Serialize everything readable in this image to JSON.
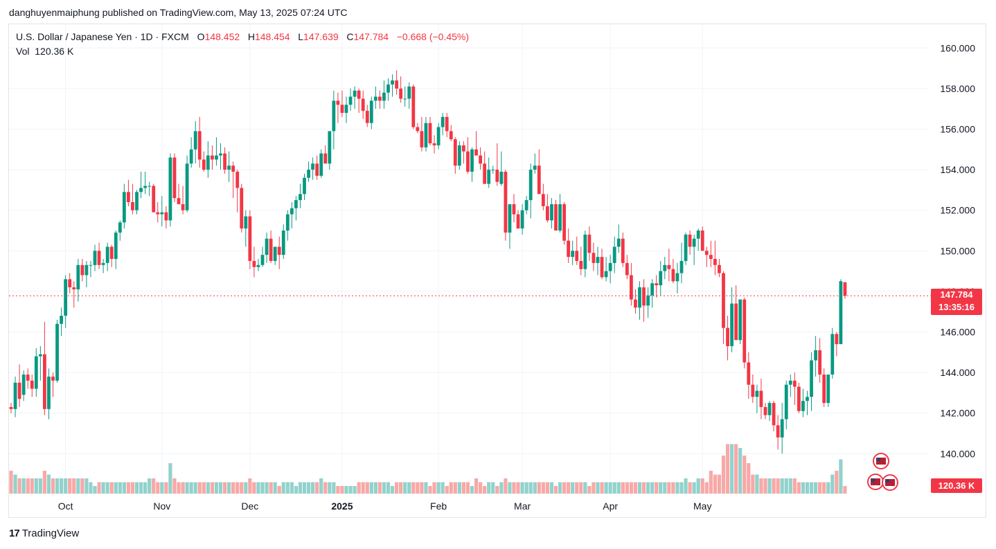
{
  "caption": "danghuyenmaiphung published on TradingView.com, May 13, 2025 07:24 UTC",
  "legend": {
    "symbol": "U.S. Dollar / Japanese Yen · 1D · FXCM",
    "o_label": "O",
    "o": "148.452",
    "h_label": "H",
    "h": "148.454",
    "l_label": "L",
    "l": "147.639",
    "c_label": "C",
    "c": "147.784",
    "change": "−0.668 (−0.45%)",
    "vol_label": "Vol",
    "vol": "120.36 K"
  },
  "badges": {
    "price": "147.784",
    "countdown": "13:35:16",
    "volume": "120.36 K"
  },
  "brand": {
    "logo": "17",
    "name": "TradingView"
  },
  "colors": {
    "up": "#089981",
    "down": "#f23645",
    "vol_up": "#92d2cc",
    "vol_down": "#f7a9a7",
    "grid": "#f0f3fa"
  },
  "icons": [
    "flag-us-icon",
    "flag-jp-icon"
  ],
  "chart_data": {
    "type": "candlestick",
    "ylim": [
      139.0,
      161.0
    ],
    "y_ticks": [
      "160.000",
      "158.000",
      "156.000",
      "154.000",
      "152.000",
      "150.000",
      "148.000",
      "146.000",
      "144.000",
      "142.000",
      "140.000"
    ],
    "x_ticks": [
      {
        "label": "Oct",
        "bold": false,
        "index": 13
      },
      {
        "label": "Nov",
        "bold": false,
        "index": 36
      },
      {
        "label": "Dec",
        "bold": false,
        "index": 57
      },
      {
        "label": "2025",
        "bold": true,
        "index": 79
      },
      {
        "label": "Feb",
        "bold": false,
        "index": 102
      },
      {
        "label": "Mar",
        "bold": false,
        "index": 122
      },
      {
        "label": "Apr",
        "bold": false,
        "index": 143
      },
      {
        "label": "May",
        "bold": false,
        "index": 165
      }
    ],
    "current_price": 147.784,
    "ohlcv": [
      [
        142.3,
        142.5,
        142.0,
        142.2,
        0.6
      ],
      [
        142.2,
        143.8,
        141.8,
        143.5,
        0.5
      ],
      [
        143.5,
        144.4,
        142.3,
        142.7,
        0.4
      ],
      [
        142.9,
        144.1,
        142.6,
        143.9,
        0.4
      ],
      [
        143.9,
        144.2,
        143.2,
        143.6,
        0.4
      ],
      [
        143.6,
        143.9,
        142.8,
        143.2,
        0.4
      ],
      [
        143.2,
        145.2,
        142.8,
        144.8,
        0.4
      ],
      [
        144.8,
        145.3,
        143.6,
        144.9,
        0.4
      ],
      [
        144.9,
        146.5,
        141.9,
        142.2,
        0.6
      ],
      [
        142.2,
        144.2,
        141.7,
        143.8,
        0.5
      ],
      [
        143.8,
        144.0,
        142.8,
        143.6,
        0.4
      ],
      [
        143.6,
        146.6,
        143.5,
        146.4,
        0.4
      ],
      [
        146.4,
        147.2,
        145.8,
        146.8,
        0.4
      ],
      [
        146.8,
        148.8,
        146.2,
        148.6,
        0.4
      ],
      [
        148.6,
        148.9,
        147.9,
        148.2,
        0.4
      ],
      [
        148.2,
        148.5,
        147.2,
        148.1,
        0.4
      ],
      [
        148.1,
        149.6,
        147.5,
        149.3,
        0.4
      ],
      [
        149.3,
        149.6,
        148.5,
        148.8,
        0.4
      ],
      [
        148.8,
        149.5,
        148.2,
        149.3,
        0.4
      ],
      [
        149.3,
        149.5,
        148.7,
        149.3,
        0.3
      ],
      [
        149.3,
        150.3,
        149.0,
        150.0,
        0.2
      ],
      [
        150.0,
        150.4,
        149.1,
        149.3,
        0.3
      ],
      [
        149.3,
        149.6,
        148.9,
        149.4,
        0.3
      ],
      [
        149.4,
        150.4,
        149.0,
        150.2,
        0.3
      ],
      [
        150.2,
        150.3,
        149.2,
        149.6,
        0.3
      ],
      [
        149.6,
        151.0,
        149.1,
        150.9,
        0.3
      ],
      [
        150.9,
        151.5,
        150.5,
        151.4,
        0.3
      ],
      [
        151.4,
        153.3,
        151.1,
        152.9,
        0.3
      ],
      [
        152.9,
        153.5,
        152.2,
        152.4,
        0.3
      ],
      [
        152.4,
        153.3,
        151.8,
        152.0,
        0.3
      ],
      [
        152.0,
        153.0,
        151.8,
        152.9,
        0.3
      ],
      [
        152.9,
        153.9,
        152.6,
        153.1,
        0.3
      ],
      [
        153.1,
        153.9,
        152.8,
        153.2,
        0.3
      ],
      [
        153.2,
        153.4,
        152.7,
        153.2,
        0.4
      ],
      [
        153.2,
        153.3,
        151.9,
        151.9,
        0.4
      ],
      [
        151.9,
        152.4,
        151.4,
        151.8,
        0.3
      ],
      [
        151.8,
        152.7,
        151.2,
        151.9,
        0.3
      ],
      [
        151.9,
        152.2,
        151.1,
        151.5,
        0.3
      ],
      [
        151.5,
        154.8,
        151.2,
        154.6,
        0.8
      ],
      [
        154.6,
        154.8,
        152.4,
        152.6,
        0.4
      ],
      [
        152.6,
        153.3,
        152.3,
        152.3,
        0.3
      ],
      [
        152.3,
        153.2,
        151.8,
        152.0,
        0.3
      ],
      [
        152.0,
        154.7,
        151.9,
        154.3,
        0.3
      ],
      [
        154.3,
        155.6,
        154.1,
        155.0,
        0.3
      ],
      [
        155.0,
        156.4,
        154.3,
        155.9,
        0.3
      ],
      [
        155.9,
        156.6,
        154.1,
        154.5,
        0.3
      ],
      [
        154.5,
        154.9,
        153.9,
        154.0,
        0.3
      ],
      [
        154.0,
        155.4,
        153.6,
        154.7,
        0.3
      ],
      [
        154.7,
        155.2,
        154.0,
        154.5,
        0.3
      ],
      [
        154.5,
        155.6,
        154.2,
        154.7,
        0.3
      ],
      [
        154.7,
        155.3,
        154.0,
        154.8,
        0.3
      ],
      [
        154.8,
        155.1,
        153.8,
        154.0,
        0.3
      ],
      [
        154.0,
        154.9,
        153.4,
        154.2,
        0.3
      ],
      [
        154.2,
        154.4,
        152.6,
        153.9,
        0.3
      ],
      [
        153.9,
        154.0,
        151.9,
        153.1,
        0.3
      ],
      [
        153.1,
        153.3,
        150.9,
        151.1,
        0.3
      ],
      [
        151.1,
        152.0,
        150.2,
        151.7,
        0.3
      ],
      [
        151.7,
        152.0,
        149.1,
        149.5,
        0.4
      ],
      [
        149.5,
        150.2,
        148.7,
        149.2,
        0.3
      ],
      [
        149.2,
        149.6,
        149.0,
        149.3,
        0.3
      ],
      [
        149.3,
        150.2,
        149.2,
        149.8,
        0.3
      ],
      [
        149.8,
        150.9,
        149.4,
        150.6,
        0.3
      ],
      [
        150.6,
        151.0,
        149.4,
        149.5,
        0.3
      ],
      [
        149.5,
        150.2,
        149.3,
        150.2,
        0.3
      ],
      [
        150.2,
        150.7,
        149.1,
        149.8,
        0.2
      ],
      [
        149.8,
        151.3,
        149.6,
        151.0,
        0.3
      ],
      [
        151.0,
        152.0,
        150.5,
        151.8,
        0.3
      ],
      [
        151.8,
        152.4,
        151.1,
        152.1,
        0.3
      ],
      [
        152.1,
        152.7,
        151.5,
        152.5,
        0.2
      ],
      [
        152.5,
        153.3,
        152.1,
        152.8,
        0.3
      ],
      [
        152.8,
        153.8,
        152.5,
        153.6,
        0.3
      ],
      [
        153.6,
        154.4,
        153.4,
        154.0,
        0.3
      ],
      [
        154.0,
        154.6,
        153.5,
        154.3,
        0.3
      ],
      [
        154.3,
        154.7,
        153.5,
        153.7,
        0.3
      ],
      [
        153.7,
        155.0,
        153.6,
        154.8,
        0.4
      ],
      [
        154.8,
        155.2,
        154.3,
        154.3,
        0.3
      ],
      [
        154.3,
        155.9,
        154.0,
        155.9,
        0.3
      ],
      [
        155.9,
        157.9,
        155.0,
        157.4,
        0.3
      ],
      [
        157.4,
        157.8,
        156.3,
        157.2,
        0.2
      ],
      [
        157.2,
        157.9,
        156.6,
        156.8,
        0.2
      ],
      [
        156.8,
        157.6,
        156.3,
        157.2,
        0.2
      ],
      [
        157.2,
        158.0,
        156.9,
        157.6,
        0.2
      ],
      [
        157.6,
        158.1,
        157.0,
        157.9,
        0.2
      ],
      [
        157.9,
        158.0,
        156.8,
        157.5,
        0.3
      ],
      [
        157.5,
        157.9,
        156.5,
        156.9,
        0.3
      ],
      [
        156.9,
        157.2,
        156.1,
        156.3,
        0.3
      ],
      [
        156.3,
        157.6,
        156.0,
        157.4,
        0.3
      ],
      [
        157.4,
        158.1,
        157.0,
        157.6,
        0.3
      ],
      [
        157.6,
        157.9,
        157.0,
        157.4,
        0.3
      ],
      [
        157.4,
        158.4,
        157.0,
        157.8,
        0.3
      ],
      [
        157.8,
        158.5,
        157.4,
        158.2,
        0.3
      ],
      [
        158.2,
        158.7,
        157.6,
        158.4,
        0.2
      ],
      [
        158.4,
        158.9,
        157.7,
        158.0,
        0.3
      ],
      [
        158.0,
        158.6,
        157.3,
        157.5,
        0.3
      ],
      [
        157.5,
        158.1,
        157.1,
        157.5,
        0.3
      ],
      [
        157.5,
        158.3,
        157.0,
        158.1,
        0.3
      ],
      [
        158.1,
        158.2,
        156.0,
        156.1,
        0.3
      ],
      [
        156.1,
        156.3,
        155.8,
        155.9,
        0.3
      ],
      [
        155.9,
        156.6,
        154.9,
        155.1,
        0.3
      ],
      [
        155.1,
        156.6,
        154.9,
        156.3,
        0.3
      ],
      [
        156.3,
        156.6,
        155.2,
        155.3,
        0.2
      ],
      [
        155.3,
        155.7,
        154.8,
        155.2,
        0.3
      ],
      [
        155.2,
        156.3,
        155.0,
        156.1,
        0.3
      ],
      [
        156.1,
        156.8,
        155.7,
        156.6,
        0.3
      ],
      [
        156.6,
        156.8,
        155.6,
        155.9,
        0.2
      ],
      [
        155.9,
        156.2,
        155.4,
        155.5,
        0.3
      ],
      [
        155.5,
        155.6,
        153.8,
        154.2,
        0.3
      ],
      [
        154.2,
        155.4,
        154.0,
        155.2,
        0.3
      ],
      [
        155.2,
        155.4,
        154.3,
        154.9,
        0.3
      ],
      [
        154.9,
        155.6,
        153.8,
        153.9,
        0.3
      ],
      [
        153.9,
        155.1,
        153.4,
        155.0,
        0.2
      ],
      [
        155.0,
        155.9,
        154.7,
        154.7,
        0.4
      ],
      [
        154.7,
        155.1,
        154.0,
        154.3,
        0.3
      ],
      [
        154.3,
        154.9,
        153.3,
        153.3,
        0.2
      ],
      [
        153.3,
        154.6,
        153.1,
        154.0,
        0.3
      ],
      [
        154.0,
        154.2,
        153.8,
        154.0,
        0.3
      ],
      [
        154.0,
        155.3,
        153.2,
        153.4,
        0.2
      ],
      [
        153.3,
        154.9,
        153.2,
        153.9,
        0.3
      ],
      [
        153.9,
        154.0,
        150.5,
        150.9,
        0.4
      ],
      [
        150.9,
        152.1,
        150.1,
        152.3,
        0.3
      ],
      [
        152.3,
        152.8,
        151.4,
        151.8,
        0.3
      ],
      [
        151.8,
        152.0,
        151.1,
        151.1,
        0.3
      ],
      [
        151.1,
        152.3,
        150.8,
        152.0,
        0.3
      ],
      [
        152.0,
        152.7,
        151.8,
        152.5,
        0.3
      ],
      [
        152.5,
        154.3,
        151.6,
        154.0,
        0.3
      ],
      [
        154.0,
        154.8,
        153.8,
        154.2,
        0.3
      ],
      [
        154.2,
        155.0,
        153.6,
        152.8,
        0.3
      ],
      [
        152.8,
        153.3,
        152.0,
        152.2,
        0.3
      ],
      [
        152.2,
        152.8,
        151.4,
        151.5,
        0.3
      ],
      [
        151.5,
        152.6,
        151.1,
        152.3,
        0.3
      ],
      [
        152.3,
        152.5,
        151.0,
        151.0,
        0.2
      ],
      [
        151.0,
        152.8,
        150.9,
        152.3,
        0.3
      ],
      [
        152.3,
        152.4,
        150.3,
        150.5,
        0.3
      ],
      [
        150.5,
        151.1,
        149.4,
        149.7,
        0.3
      ],
      [
        149.7,
        150.5,
        149.3,
        150.0,
        0.3
      ],
      [
        150.0,
        150.7,
        149.3,
        149.5,
        0.3
      ],
      [
        149.5,
        150.2,
        148.8,
        149.1,
        0.3
      ],
      [
        149.1,
        151.0,
        148.7,
        150.8,
        0.3
      ],
      [
        150.8,
        151.2,
        149.5,
        149.9,
        0.2
      ],
      [
        149.9,
        150.4,
        149.0,
        149.4,
        0.3
      ],
      [
        149.4,
        150.2,
        148.8,
        149.7,
        0.3
      ],
      [
        149.7,
        150.1,
        148.6,
        148.7,
        0.3
      ],
      [
        148.7,
        149.7,
        148.5,
        149.0,
        0.3
      ],
      [
        149.0,
        149.8,
        148.4,
        149.4,
        0.3
      ],
      [
        149.4,
        150.7,
        148.9,
        150.2,
        0.3
      ],
      [
        150.2,
        151.3,
        149.9,
        150.6,
        0.3
      ],
      [
        150.6,
        150.9,
        149.2,
        149.4,
        0.3
      ],
      [
        149.4,
        149.8,
        148.6,
        148.8,
        0.3
      ],
      [
        148.8,
        149.4,
        147.3,
        147.6,
        0.3
      ],
      [
        147.6,
        148.1,
        146.9,
        147.2,
        0.3
      ],
      [
        147.2,
        148.5,
        146.6,
        148.2,
        0.3
      ],
      [
        148.2,
        148.6,
        146.5,
        147.3,
        0.3
      ],
      [
        147.3,
        148.2,
        146.7,
        147.8,
        0.3
      ],
      [
        147.8,
        148.6,
        147.2,
        148.4,
        0.3
      ],
      [
        148.4,
        148.8,
        147.7,
        148.3,
        0.3
      ],
      [
        148.3,
        149.5,
        147.8,
        149.0,
        0.3
      ],
      [
        149.0,
        149.7,
        148.6,
        149.3,
        0.3
      ],
      [
        149.3,
        150.1,
        148.5,
        149.1,
        0.3
      ],
      [
        149.1,
        149.6,
        148.4,
        148.5,
        0.3
      ],
      [
        148.5,
        149.4,
        147.9,
        148.9,
        0.3
      ],
      [
        148.9,
        150.4,
        148.4,
        149.5,
        0.3
      ],
      [
        149.5,
        150.9,
        149.3,
        150.8,
        0.4
      ],
      [
        150.8,
        151.0,
        149.8,
        150.2,
        0.3
      ],
      [
        150.2,
        150.8,
        149.3,
        150.6,
        0.3
      ],
      [
        150.6,
        151.1,
        150.0,
        151.0,
        0.4
      ],
      [
        151.0,
        151.2,
        150.1,
        150.0,
        0.4
      ],
      [
        150.0,
        150.2,
        149.2,
        149.8,
        0.3
      ],
      [
        149.8,
        150.5,
        149.2,
        149.6,
        0.6
      ],
      [
        149.6,
        150.5,
        148.8,
        149.3,
        0.5
      ],
      [
        149.3,
        149.6,
        148.7,
        148.9,
        0.5
      ],
      [
        148.9,
        149.0,
        145.4,
        146.2,
        1.0
      ],
      [
        146.2,
        146.8,
        144.6,
        145.3,
        1.3
      ],
      [
        145.3,
        148.2,
        145.0,
        147.4,
        1.3
      ],
      [
        147.4,
        148.3,
        145.7,
        145.6,
        1.3
      ],
      [
        145.6,
        147.6,
        145.4,
        147.6,
        1.2
      ],
      [
        147.6,
        147.7,
        144.2,
        144.5,
        1.0
      ],
      [
        144.5,
        145.0,
        142.7,
        143.4,
        0.8
      ],
      [
        143.4,
        143.9,
        142.5,
        142.8,
        0.5
      ],
      [
        142.8,
        143.4,
        142.0,
        143.1,
        0.5
      ],
      [
        143.1,
        143.7,
        141.7,
        142.3,
        0.4
      ],
      [
        142.3,
        142.5,
        141.7,
        141.9,
        0.4
      ],
      [
        141.9,
        142.6,
        141.6,
        142.5,
        0.4
      ],
      [
        142.5,
        142.6,
        141.1,
        141.4,
        0.4
      ],
      [
        141.4,
        141.9,
        140.2,
        140.8,
        0.4
      ],
      [
        140.8,
        142.5,
        140.0,
        141.7,
        0.4
      ],
      [
        141.7,
        143.6,
        141.2,
        143.4,
        0.4
      ],
      [
        143.4,
        143.9,
        142.8,
        143.6,
        0.4
      ],
      [
        143.6,
        144.0,
        142.4,
        143.3,
        0.4
      ],
      [
        143.3,
        143.5,
        142.0,
        142.1,
        0.3
      ],
      [
        142.1,
        143.2,
        141.8,
        142.6,
        0.3
      ],
      [
        142.6,
        143.1,
        141.9,
        142.8,
        0.3
      ],
      [
        142.8,
        145.0,
        142.1,
        144.6,
        0.3
      ],
      [
        144.6,
        145.8,
        143.8,
        145.1,
        0.3
      ],
      [
        145.1,
        145.7,
        143.5,
        143.9,
        0.3
      ],
      [
        143.9,
        144.2,
        142.3,
        142.5,
        0.3
      ],
      [
        142.5,
        143.9,
        142.3,
        143.9,
        0.3
      ],
      [
        143.9,
        146.2,
        143.7,
        145.9,
        0.5
      ],
      [
        145.9,
        146.0,
        144.8,
        145.4,
        0.6
      ],
      [
        145.4,
        148.6,
        145.4,
        148.5,
        0.9
      ],
      [
        148.452,
        148.454,
        147.639,
        147.784,
        0.2
      ]
    ]
  }
}
